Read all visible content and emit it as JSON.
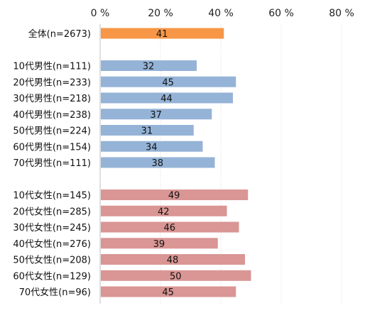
{
  "chart_data": {
    "type": "bar",
    "orientation": "horizontal",
    "title": "",
    "xlabel": "",
    "ylabel": "",
    "xlim": [
      0,
      80
    ],
    "x_ticks": [
      "0 %",
      "20 %",
      "40 %",
      "60 %",
      "80 %"
    ],
    "x_tick_values": [
      0,
      20,
      40,
      60,
      80
    ],
    "grid": true,
    "legend": "none",
    "groups": [
      {
        "color": "#f79646",
        "categories": [
          "全体(n=2673)"
        ],
        "values": [
          41
        ]
      },
      {
        "color": "#95b3d7",
        "categories": [
          "10代男性(n=111)",
          "20代男性(n=233)",
          "30代男性(n=218)",
          "40代男性(n=238)",
          "50代男性(n=224)",
          "60代男性(n=154)",
          "70代男性(n=111)"
        ],
        "values": [
          32,
          45,
          44,
          37,
          31,
          34,
          38
        ]
      },
      {
        "color": "#d99694",
        "categories": [
          "10代女性(n=145)",
          "20代女性(n=285)",
          "30代女性(n=245)",
          "40代女性(n=276)",
          "50代女性(n=208)",
          "60代女性(n=129)",
          "70代女性(n=96)"
        ],
        "values": [
          49,
          42,
          46,
          39,
          48,
          50,
          45
        ]
      }
    ]
  }
}
